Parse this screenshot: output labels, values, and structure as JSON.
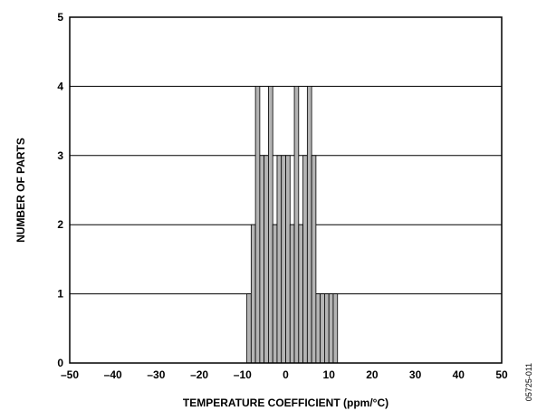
{
  "chart_data": {
    "type": "bar",
    "title": "",
    "xlabel": "TEMPERATURE COEFFICIENT (ppm/°C)",
    "ylabel": "NUMBER OF PARTS",
    "xlim": [
      -50,
      50
    ],
    "ylim": [
      0,
      5
    ],
    "xticks": [
      "–50",
      "–40",
      "–30",
      "–20",
      "–10",
      "0",
      "10",
      "20",
      "30",
      "40",
      "50"
    ],
    "yticks": [
      "0",
      "1",
      "2",
      "3",
      "4",
      "5"
    ],
    "grid": "horizontal",
    "bar_color": "#b4b4b4",
    "bins": {
      "x": [
        -8.5,
        -7.5,
        -6.5,
        -5.5,
        -4.5,
        -3.5,
        -2.5,
        -1.5,
        -0.5,
        0.5,
        1.5,
        2.5,
        3.5,
        4.5,
        5.5,
        6.5,
        7.5,
        8.5,
        9.5,
        10.5,
        11.5
      ],
      "values": [
        1,
        2,
        4,
        3,
        3,
        4,
        2,
        3,
        3,
        3,
        2,
        4,
        2,
        3,
        4,
        3,
        1,
        1,
        1,
        1,
        1
      ]
    }
  },
  "figure_id": "05725-011"
}
